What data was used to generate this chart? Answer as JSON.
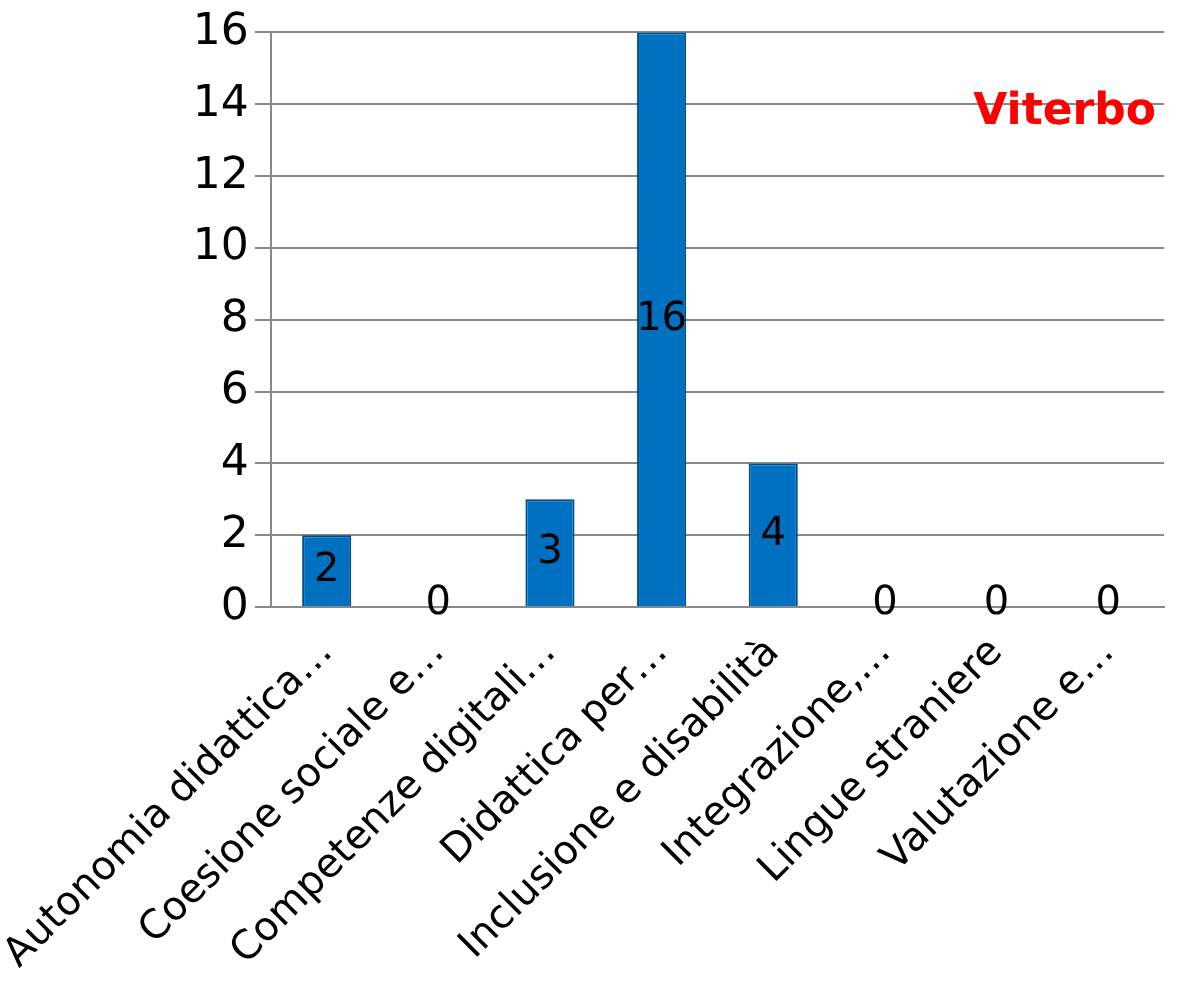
{
  "chart_data": {
    "type": "bar",
    "title": "Viterbo",
    "categories": [
      "Autonomia didattica…",
      "Coesione sociale e…",
      "Competenze digitali…",
      "Didattica per…",
      "Inclusione e disabilità",
      "Integrazione,…",
      "Lingue straniere",
      "Valutazione e…"
    ],
    "values": [
      2,
      0,
      3,
      16,
      4,
      0,
      0,
      0
    ],
    "color": "#0070c0",
    "ylim": [
      0,
      16
    ],
    "yticks": [
      0,
      2,
      4,
      6,
      8,
      10,
      12,
      14,
      16
    ],
    "grid": "y",
    "data_labels": true
  }
}
